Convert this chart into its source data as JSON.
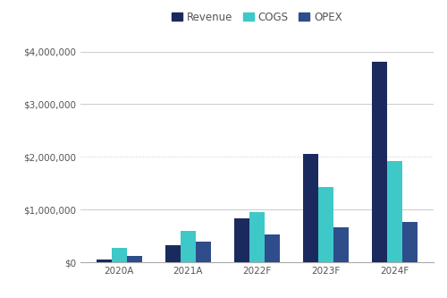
{
  "categories": [
    "2020A",
    "2021A",
    "2022F",
    "2023F",
    "2024F"
  ],
  "series": {
    "Revenue": [
      50000,
      320000,
      830000,
      2050000,
      3800000
    ],
    "COGS": [
      270000,
      590000,
      960000,
      1430000,
      1920000
    ],
    "OPEX": [
      120000,
      390000,
      520000,
      660000,
      770000
    ]
  },
  "colors": {
    "Revenue": "#1b2a5e",
    "COGS": "#3ec8c8",
    "OPEX": "#2e4d8a"
  },
  "ylim": [
    0,
    4300000
  ],
  "yticks": [
    0,
    1000000,
    2000000,
    3000000,
    4000000
  ],
  "background_color": "#ffffff",
  "grid_color": "#cccccc",
  "bar_width": 0.22,
  "legend_labels": [
    "Revenue",
    "COGS",
    "OPEX"
  ],
  "tick_label_color": "#555555",
  "tick_label_fontsize": 7.5,
  "legend_fontsize": 8.5
}
